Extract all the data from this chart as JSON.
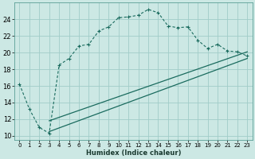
{
  "xlabel": "Humidex (Indice chaleur)",
  "bg_color": "#cce8e4",
  "grid_color": "#a0ccc8",
  "line_color": "#1a6b5e",
  "xlim": [
    -0.5,
    23.5
  ],
  "ylim": [
    9.5,
    26.0
  ],
  "xticks": [
    0,
    1,
    2,
    3,
    4,
    5,
    6,
    7,
    8,
    9,
    10,
    11,
    12,
    13,
    14,
    15,
    16,
    17,
    18,
    19,
    20,
    21,
    22,
    23
  ],
  "yticks": [
    10,
    12,
    14,
    16,
    18,
    20,
    22,
    24
  ],
  "curve1_x": [
    0,
    1,
    2,
    3,
    4,
    5,
    6,
    7,
    8,
    9,
    10,
    11,
    12,
    13,
    14,
    15,
    16,
    17,
    18,
    19,
    20,
    21,
    22,
    23
  ],
  "curve1_y": [
    16.2,
    13.2,
    11.0,
    10.3,
    18.5,
    19.3,
    20.8,
    21.0,
    22.6,
    23.1,
    24.2,
    24.3,
    24.5,
    25.2,
    24.8,
    23.2,
    23.0,
    23.1,
    21.5,
    20.5,
    21.0,
    20.2,
    20.1,
    19.6
  ],
  "line2_x": [
    3,
    23
  ],
  "line2_y": [
    11.8,
    20.1
  ],
  "line3_x": [
    3,
    23
  ],
  "line3_y": [
    10.5,
    19.3
  ]
}
